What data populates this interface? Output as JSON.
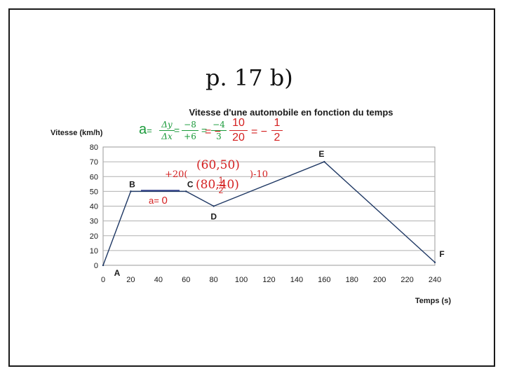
{
  "slide": {
    "title": "p. 17 b)"
  },
  "chart_data": {
    "type": "line",
    "title": "Vitesse d'une automobile en fonction du temps",
    "xlabel": "Temps (s)",
    "ylabel": "Vitesse (km/h)",
    "xlim": [
      0,
      240
    ],
    "ylim": [
      0,
      80
    ],
    "xticks": [
      0,
      20,
      40,
      60,
      80,
      100,
      120,
      140,
      160,
      180,
      200,
      220,
      240
    ],
    "yticks": [
      0,
      10,
      20,
      30,
      40,
      50,
      60,
      70,
      80
    ],
    "grid": "horizontal",
    "series": [
      {
        "x": [
          0,
          20,
          60,
          80,
          160,
          240
        ],
        "y": [
          0,
          50,
          50,
          40,
          70,
          2
        ]
      }
    ],
    "point_labels": [
      {
        "label": "A",
        "x": 0,
        "y": 0
      },
      {
        "label": "B",
        "x": 20,
        "y": 50
      },
      {
        "label": "C",
        "x": 60,
        "y": 50
      },
      {
        "label": "D",
        "x": 80,
        "y": 40
      },
      {
        "label": "E",
        "x": 160,
        "y": 70
      },
      {
        "label": "F",
        "x": 240,
        "y": 2
      }
    ]
  },
  "annotations": {
    "slope_prefix": "a",
    "slope_eq": "=",
    "dy": "Δy",
    "dx": "Δx",
    "num1": "−8",
    "den1": "+6",
    "num2": "−4",
    "den2": "3",
    "red_num": "10",
    "red_den": "20",
    "red_eq": "= −",
    "red_minus": "= −",
    "red_num2": "1",
    "red_den2": "2",
    "plus20": "+20(",
    "point_c": "(60,50)",
    "minus10": ")-10",
    "point_d": "(80,40)",
    "half_num": "1",
    "half_den": "2",
    "a_zero_label": "a=",
    "a_zero_value": "0"
  },
  "colors": {
    "series": "#1f3864",
    "red": "#d42020",
    "green": "#1a9a3a",
    "blue_line": "#2f3c8c"
  }
}
